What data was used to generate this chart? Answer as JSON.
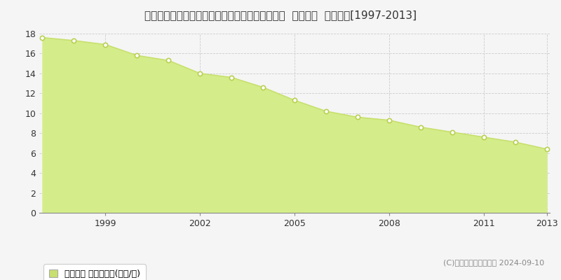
{
  "title": "長野県上水内郡信濃町大字柏原字役屋敷６０番１  地価公示  地価推移[1997-2013]",
  "years": [
    1997,
    1998,
    1999,
    2000,
    2001,
    2002,
    2003,
    2004,
    2005,
    2006,
    2007,
    2008,
    2009,
    2010,
    2011,
    2012,
    2013
  ],
  "values": [
    17.6,
    17.3,
    16.9,
    15.8,
    15.3,
    14.0,
    13.6,
    12.6,
    11.3,
    10.2,
    9.6,
    9.3,
    8.6,
    8.1,
    7.6,
    7.1,
    6.4
  ],
  "line_color": "#c8e06e",
  "fill_color": "#d4ed8a",
  "marker_color": "#ffffff",
  "marker_edge_color": "#b8d050",
  "ylim": [
    0,
    18
  ],
  "yticks": [
    0,
    2,
    4,
    6,
    8,
    10,
    12,
    14,
    16,
    18
  ],
  "xticks": [
    1999,
    2002,
    2005,
    2008,
    2011,
    2013
  ],
  "grid_color": "#cccccc",
  "bg_color": "#f5f5f5",
  "plot_bg_color": "#f5f5f5",
  "legend_label": "地価公示 平均坪単価(万円/坪)",
  "legend_color": "#c8e06e",
  "copyright_text": "(C)土地価格ドットコム 2024-09-10",
  "title_fontsize": 11,
  "axis_fontsize": 9,
  "legend_fontsize": 9,
  "copyright_fontsize": 8
}
